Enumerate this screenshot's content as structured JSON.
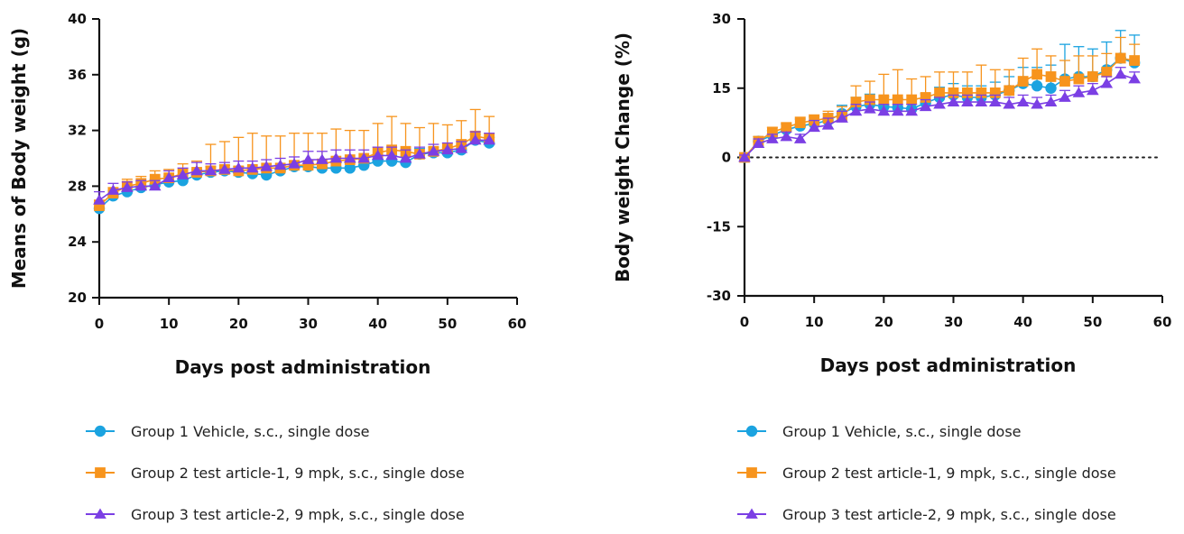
{
  "chart_data": [
    {
      "type": "line",
      "xlabel": "Days post administration",
      "ylabel": "Means of Body weight (g)",
      "xlim": [
        0,
        60
      ],
      "ylim": [
        20,
        40
      ],
      "xticks": [
        0,
        10,
        20,
        30,
        40,
        50,
        60
      ],
      "yticks": [
        20,
        24,
        28,
        32,
        36,
        40
      ],
      "zero_line": false,
      "error_bars": "upper",
      "legend_position": "bottom",
      "x": [
        0,
        2,
        4,
        6,
        8,
        10,
        12,
        14,
        16,
        18,
        20,
        22,
        24,
        26,
        28,
        30,
        32,
        34,
        36,
        38,
        40,
        42,
        44,
        46,
        48,
        50,
        52,
        54,
        56
      ],
      "series": [
        {
          "name": "Group 1 Vehicle, s.c., single dose",
          "color": "#1BA3E0",
          "marker": "circle",
          "values": [
            26.4,
            27.3,
            27.6,
            27.9,
            28.1,
            28.3,
            28.4,
            28.8,
            29.0,
            29.1,
            29.0,
            28.9,
            28.8,
            29.1,
            29.4,
            29.4,
            29.3,
            29.3,
            29.3,
            29.5,
            29.8,
            29.8,
            29.7,
            30.3,
            30.4,
            30.4,
            30.6,
            31.3,
            31.1
          ],
          "errors": [
            0.4,
            0.4,
            0.4,
            0.4,
            0.4,
            0.4,
            0.4,
            0.4,
            0.4,
            0.4,
            0.4,
            0.4,
            0.4,
            0.4,
            0.4,
            0.4,
            0.4,
            0.4,
            0.4,
            0.4,
            0.4,
            0.4,
            0.4,
            0.4,
            0.4,
            0.4,
            0.4,
            0.4,
            0.4
          ]
        },
        {
          "name": "Group 2 test article-1, 9 mpk, s.c., single dose",
          "color": "#F7941D",
          "marker": "square",
          "values": [
            26.6,
            27.5,
            28.0,
            28.2,
            28.5,
            28.6,
            28.9,
            29.0,
            29.1,
            29.2,
            29.1,
            29.2,
            29.3,
            29.3,
            29.5,
            29.5,
            29.6,
            29.8,
            29.9,
            30.0,
            30.4,
            30.6,
            30.5,
            30.3,
            30.5,
            30.7,
            31.0,
            31.6,
            31.4
          ],
          "errors": [
            0.4,
            0.4,
            0.5,
            0.5,
            0.6,
            0.6,
            0.7,
            0.8,
            1.9,
            2.0,
            2.4,
            2.6,
            2.3,
            2.3,
            2.3,
            2.3,
            2.2,
            2.3,
            2.1,
            2.0,
            2.1,
            2.4,
            2.0,
            1.9,
            2.0,
            1.7,
            1.7,
            1.9,
            1.6
          ]
        },
        {
          "name": "Group 3 test article-2, 9 mpk, s.c., single dose",
          "color": "#7B3FE4",
          "marker": "triangle",
          "values": [
            27.0,
            27.7,
            27.9,
            28.0,
            28.0,
            28.6,
            28.8,
            29.1,
            29.1,
            29.2,
            29.3,
            29.3,
            29.4,
            29.5,
            29.6,
            29.9,
            29.9,
            30.0,
            30.0,
            30.0,
            30.2,
            30.2,
            30.0,
            30.3,
            30.5,
            30.6,
            30.7,
            31.3,
            31.3
          ],
          "errors": [
            0.6,
            0.5,
            0.4,
            0.4,
            0.4,
            0.5,
            0.5,
            0.6,
            0.5,
            0.5,
            0.5,
            0.5,
            0.5,
            0.5,
            0.5,
            0.6,
            0.6,
            0.6,
            0.6,
            0.6,
            0.6,
            0.6,
            0.6,
            0.5,
            0.5,
            0.5,
            0.5,
            0.6,
            0.5
          ]
        }
      ]
    },
    {
      "type": "line",
      "xlabel": "Days post administration",
      "ylabel": "Body weight Change (%)",
      "xlim": [
        0,
        60
      ],
      "ylim": [
        -30,
        30
      ],
      "xticks": [
        0,
        10,
        20,
        30,
        40,
        50,
        60
      ],
      "yticks": [
        -30,
        -15,
        0,
        15,
        30
      ],
      "zero_line": true,
      "error_bars": "upper",
      "legend_position": "bottom",
      "x": [
        0,
        2,
        4,
        6,
        8,
        10,
        12,
        14,
        16,
        18,
        20,
        22,
        24,
        26,
        28,
        30,
        32,
        34,
        36,
        38,
        40,
        42,
        44,
        46,
        48,
        50,
        52,
        54,
        56
      ],
      "series": [
        {
          "name": "Group 1 Vehicle, s.c., single dose",
          "color": "#1BA3E0",
          "marker": "circle",
          "values": [
            0,
            3.5,
            4.8,
            6.0,
            6.8,
            7.3,
            8.0,
            9.5,
            11.0,
            11.5,
            11.0,
            10.8,
            10.5,
            11.8,
            13.0,
            13.5,
            13.0,
            13.0,
            13.5,
            14.5,
            16.0,
            15.5,
            15.0,
            17.0,
            17.5,
            17.5,
            19.0,
            21.5,
            20.5
          ],
          "errors": [
            0.5,
            1.0,
            1.0,
            1.2,
            1.5,
            1.5,
            1.5,
            1.8,
            2.0,
            2.2,
            2.2,
            2.0,
            2.0,
            2.0,
            2.2,
            2.5,
            2.5,
            2.5,
            2.8,
            3.0,
            3.5,
            4.0,
            5.0,
            7.5,
            6.5,
            6.0,
            6.0,
            6.0,
            6.0
          ]
        },
        {
          "name": "Group 2 test article-1, 9 mpk, s.c., single dose",
          "color": "#F7941D",
          "marker": "square",
          "values": [
            0,
            3.5,
            5.5,
            6.5,
            7.5,
            8.0,
            8.5,
            9.0,
            12.0,
            12.5,
            12.5,
            12.5,
            12.5,
            13.0,
            14.0,
            14.0,
            14.0,
            14.0,
            14.0,
            14.5,
            16.5,
            18.0,
            17.5,
            16.5,
            17.0,
            17.5,
            18.5,
            21.5,
            21.0
          ],
          "errors": [
            0.5,
            1.0,
            1.0,
            1.0,
            1.2,
            1.2,
            1.5,
            2.0,
            3.5,
            4.0,
            5.5,
            6.5,
            4.5,
            4.5,
            4.5,
            4.5,
            4.5,
            6.0,
            5.0,
            4.5,
            5.0,
            5.5,
            4.5,
            4.5,
            5.0,
            4.5,
            4.0,
            4.5,
            3.5
          ]
        },
        {
          "name": "Group 3 test article-2, 9 mpk, s.c., single dose",
          "color": "#7B3FE4",
          "marker": "triangle",
          "values": [
            0,
            3.0,
            4.0,
            4.5,
            4.0,
            6.5,
            7.0,
            8.5,
            10.0,
            10.5,
            10.0,
            10.0,
            10.0,
            11.0,
            11.5,
            12.0,
            12.0,
            12.0,
            12.0,
            11.5,
            12.0,
            11.5,
            12.0,
            13.0,
            14.0,
            14.5,
            16.0,
            18.0,
            17.0
          ],
          "errors": [
            0.5,
            1.0,
            1.0,
            1.0,
            1.0,
            1.5,
            1.5,
            1.5,
            1.5,
            1.5,
            1.5,
            1.5,
            1.5,
            1.5,
            1.5,
            1.5,
            1.5,
            1.5,
            1.5,
            1.5,
            1.5,
            1.5,
            1.5,
            1.5,
            1.5,
            1.5,
            1.5,
            1.5,
            1.5
          ]
        }
      ]
    }
  ]
}
